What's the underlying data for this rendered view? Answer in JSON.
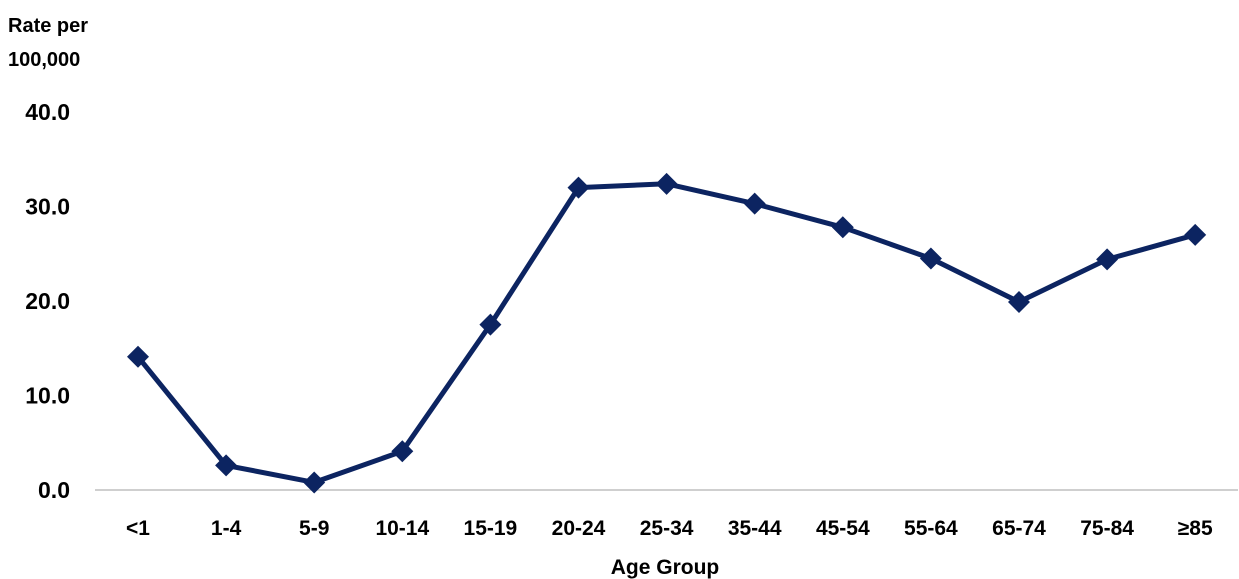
{
  "chart_data": {
    "type": "line",
    "title": "",
    "ylabel_lines": [
      "Rate per",
      "100,000"
    ],
    "xlabel": "Age Group",
    "categories": [
      "<1",
      "1-4",
      "5-9",
      "10-14",
      "15-19",
      "20-24",
      "25-34",
      "35-44",
      "45-54",
      "55-64",
      "65-74",
      "75-84",
      "≥85"
    ],
    "series": [
      {
        "values": [
          14.1,
          2.6,
          0.8,
          4.1,
          17.5,
          32.0,
          32.4,
          30.3,
          27.8,
          24.5,
          19.9,
          24.4,
          27.0
        ]
      }
    ],
    "yticks": [
      "0.0",
      "10.0",
      "20.0",
      "30.0",
      "40.0"
    ],
    "ylim": [
      0,
      40
    ],
    "grid": false,
    "legend": "none",
    "colors": {
      "line": "#0c2461",
      "axis": "#bfbfbf"
    }
  }
}
